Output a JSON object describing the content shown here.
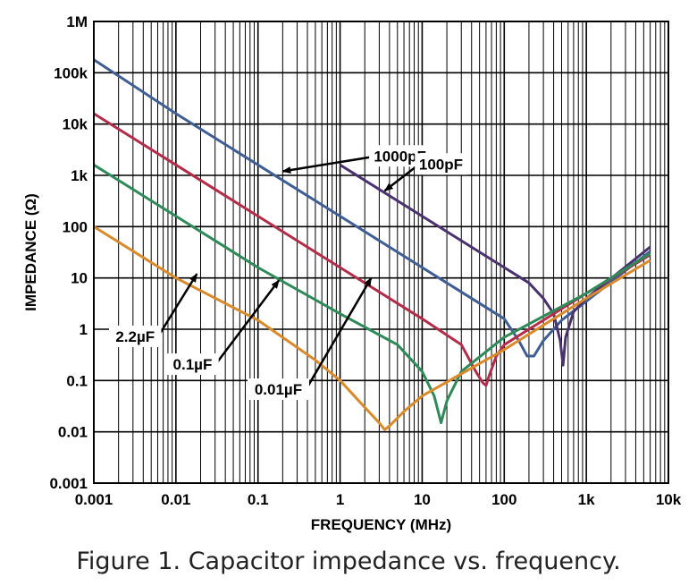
{
  "caption": "Figure 1. Capacitor impedance vs. frequency.",
  "chart_data": {
    "type": "line",
    "xscale": "log",
    "yscale": "log",
    "xlabel": "FREQUENCY (MHz)",
    "ylabel": "IMPEDANCE (Ω)",
    "xlim": [
      0.001,
      10000
    ],
    "ylim": [
      0.001,
      1000000
    ],
    "grid": true,
    "x_ticks": [
      {
        "value": 0.001,
        "label": "0.001"
      },
      {
        "value": 0.01,
        "label": "0.01"
      },
      {
        "value": 0.1,
        "label": "0.1"
      },
      {
        "value": 1,
        "label": "1"
      },
      {
        "value": 10,
        "label": "10"
      },
      {
        "value": 100,
        "label": "100"
      },
      {
        "value": 1000,
        "label": "1k"
      },
      {
        "value": 10000,
        "label": "10k"
      }
    ],
    "y_ticks": [
      {
        "value": 0.001,
        "label": "0.001"
      },
      {
        "value": 0.01,
        "label": "0.01"
      },
      {
        "value": 0.1,
        "label": "0.1"
      },
      {
        "value": 1,
        "label": "1"
      },
      {
        "value": 10,
        "label": "10"
      },
      {
        "value": 100,
        "label": "100"
      },
      {
        "value": 1000,
        "label": "1k"
      },
      {
        "value": 10000,
        "label": "10k"
      },
      {
        "value": 100000,
        "label": "100k"
      },
      {
        "value": 1000000,
        "label": "1M"
      }
    ],
    "series": [
      {
        "name": "1000pF",
        "color": "#3f5e94",
        "x": [
          0.001,
          0.01,
          0.1,
          1,
          10,
          100,
          150,
          190,
          230,
          300,
          500,
          1000,
          6000
        ],
        "y": [
          180000,
          16000,
          1600,
          160,
          16,
          1.6,
          0.6,
          0.3,
          0.3,
          0.6,
          1.5,
          3.5,
          33
        ]
      },
      {
        "name": "100pF",
        "color": "#4a326e",
        "x": [
          1,
          10,
          100,
          200,
          300,
          400,
          480,
          520,
          560,
          700,
          1000,
          6000
        ],
        "y": [
          1600,
          160,
          16,
          8,
          4,
          2,
          0.6,
          0.2,
          0.7,
          2.2,
          4,
          40
        ]
      },
      {
        "name": "0.01µF",
        "color": "#b32d4a",
        "x": [
          0.001,
          0.01,
          0.1,
          1,
          10,
          30,
          45,
          55,
          60,
          65,
          80,
          100,
          1000,
          6000
        ],
        "y": [
          16000,
          1600,
          160,
          16,
          1.6,
          0.5,
          0.15,
          0.09,
          0.08,
          0.12,
          0.3,
          0.5,
          5,
          28
        ]
      },
      {
        "name": "0.1µF",
        "color": "#2e8a58",
        "x": [
          0.001,
          0.01,
          0.1,
          1,
          5,
          10,
          14,
          17,
          20,
          30,
          100,
          1000,
          6000
        ],
        "y": [
          1600,
          160,
          16,
          2,
          0.5,
          0.15,
          0.05,
          0.015,
          0.04,
          0.15,
          0.7,
          5,
          30
        ]
      },
      {
        "name": "2.2µF",
        "color": "#d98a2b",
        "x": [
          0.001,
          0.01,
          0.1,
          0.5,
          1,
          2,
          3,
          3.5,
          4,
          6,
          10,
          100,
          1000,
          6000
        ],
        "y": [
          100,
          10,
          1.5,
          0.25,
          0.1,
          0.03,
          0.015,
          0.011,
          0.013,
          0.025,
          0.05,
          0.4,
          4,
          22
        ]
      }
    ],
    "annotations": [
      {
        "text": "1000pF",
        "tip": [
          0.2,
          1200
        ],
        "at": [
          2.5,
          2300
        ]
      },
      {
        "text": "100pF",
        "tip": [
          3.5,
          500
        ],
        "at": [
          9,
          1600
        ]
      },
      {
        "text": "2.2µF",
        "tip": [
          0.018,
          12
        ],
        "at": [
          0.006,
          0.7
        ]
      },
      {
        "text": "0.1µF",
        "tip": [
          0.18,
          9
        ],
        "at": [
          0.03,
          0.2
        ]
      },
      {
        "text": "0.01µF",
        "tip": [
          2.4,
          10
        ],
        "at": [
          0.38,
          0.065
        ]
      }
    ]
  }
}
